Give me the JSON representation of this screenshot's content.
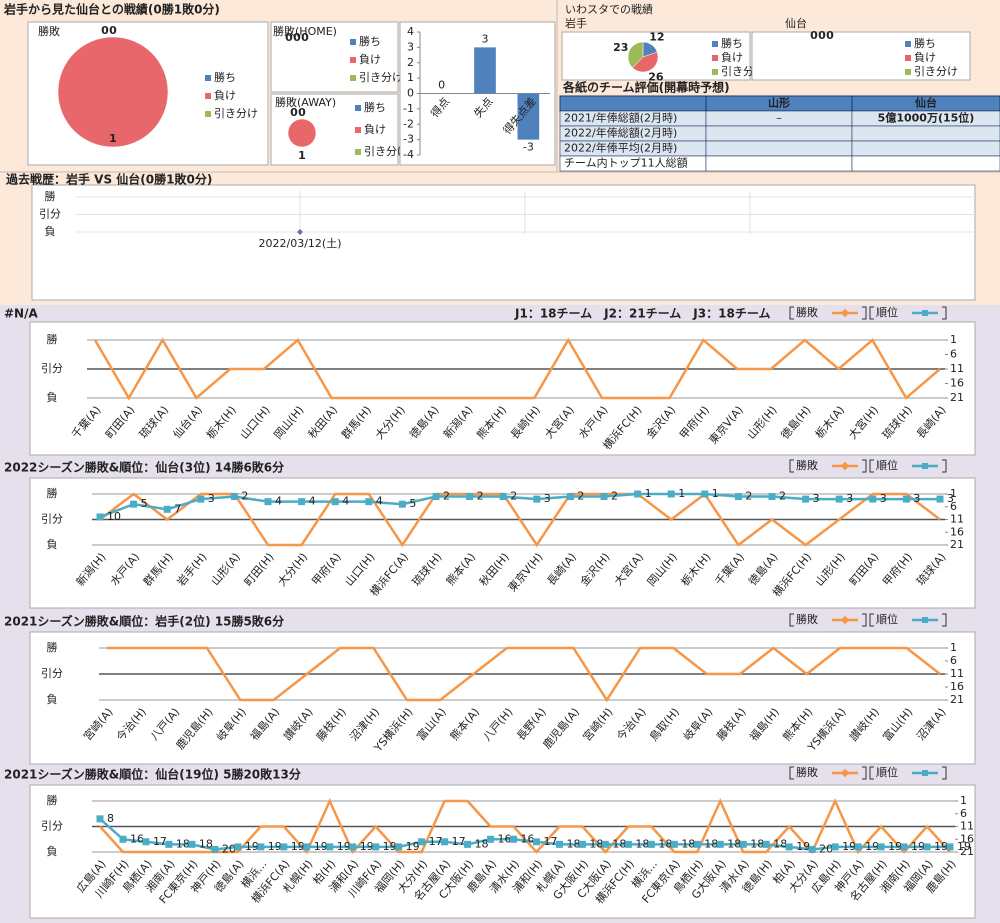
{
  "header": {
    "title": "岩手から見た仙台との戦績(0勝1敗0分)"
  },
  "stadium": {
    "title": "いわスタでの戦績"
  },
  "table": {
    "title": "各紙のチーム評価(開幕時予想)",
    "columns": [
      "山形",
      "仙台"
    ],
    "rows": [
      {
        "label": "2021/年俸総額(2月時)",
        "cells": [
          "–",
          "5億1000万(15位)"
        ]
      },
      {
        "label": "2022/年俸総額(2月時)"
      },
      {
        "label": "2022/年俸平均(2月時)"
      },
      {
        "label": "チーム内トップ11人総額"
      }
    ]
  },
  "chart_data": [
    {
      "type": "pie",
      "title": "勝敗",
      "categories": [
        "勝ち",
        "負け",
        "引き分け"
      ],
      "colors": [
        "#4f81bd",
        "#e8676a",
        "#9bbb59"
      ],
      "values": [
        0,
        1,
        0
      ]
    },
    {
      "type": "pie",
      "title": "勝敗(HOME)",
      "categories": [
        "勝ち",
        "負け",
        "引き分け"
      ],
      "colors": [
        "#4f81bd",
        "#e8676a",
        "#9bbb59"
      ],
      "values": [
        0,
        0,
        0
      ]
    },
    {
      "type": "pie",
      "title": "勝敗(AWAY)",
      "categories": [
        "勝ち",
        "負け",
        "引き分け"
      ],
      "colors": [
        "#4f81bd",
        "#e8676a",
        "#9bbb59"
      ],
      "values": [
        0,
        1,
        0
      ]
    },
    {
      "type": "bar",
      "categories": [
        "得点",
        "失点",
        "得失点差"
      ],
      "values": [
        0,
        3,
        -3
      ],
      "color": "#4f81bd",
      "ylim": [
        -4,
        4
      ],
      "yticks": [
        -4,
        -3,
        -2,
        -1,
        0,
        1,
        2,
        3,
        4
      ],
      "grid": false
    },
    {
      "type": "pie",
      "title": "岩手",
      "categories": [
        "勝ち",
        "負け",
        "引き分け"
      ],
      "colors": [
        "#4f81bd",
        "#e8676a",
        "#9bbb59"
      ],
      "values": [
        12,
        26,
        23
      ]
    },
    {
      "type": "pie",
      "title": "仙台",
      "categories": [
        "勝ち",
        "負け",
        "引き分け"
      ],
      "colors": [
        "#4f81bd",
        "#e8676a",
        "#9bbb59"
      ],
      "values": [
        0,
        0,
        0
      ]
    },
    {
      "type": "scatter",
      "title": "過去戦歴：岩手 VS 仙台(0勝1敗0分)",
      "x": [
        "2022/03/12(土)"
      ],
      "values": [
        21
      ],
      "color": "#8064a2",
      "ylim": [
        21,
        1
      ],
      "yticks": [
        {
          "value": 1,
          "label": "勝"
        },
        {
          "value": 11,
          "label": "引分"
        },
        {
          "value": 21,
          "label": "負"
        }
      ]
    },
    {
      "type": "line",
      "title": "#N/A",
      "subtitle": "J1：18チーム　J2：21チーム　J3：18チーム",
      "categories": [
        "千葉(A)",
        "町田(A)",
        "琉球(A)",
        "仙台(A)",
        "栃木(H)",
        "山口(H)",
        "岡山(H)",
        "秋田(A)",
        "群馬(H)",
        "大分(H)",
        "徳島(A)",
        "新潟(A)",
        "熊本(H)",
        "長崎(H)",
        "大宮(A)",
        "水戸(A)",
        "横浜FC(H)",
        "金沢(A)",
        "甲府(H)",
        "東京V(A)",
        "山形(H)",
        "徳島(H)",
        "栃木(A)",
        "大宮(H)",
        "琉球(H)",
        "長崎(A)"
      ],
      "ylim": [
        21,
        1
      ],
      "yticks": [
        {
          "value": 1,
          "label": "勝"
        },
        {
          "value": 11,
          "label": "引分"
        },
        {
          "value": 21,
          "label": "負"
        }
      ],
      "y2lim": [
        21,
        1
      ],
      "y2ticks": [
        1,
        6,
        11,
        16,
        21
      ],
      "series": [
        {
          "name": "勝敗",
          "color": "#f79646",
          "values": [
            1,
            21,
            1,
            21,
            11,
            11,
            1,
            21,
            21,
            21,
            21,
            21,
            21,
            21,
            1,
            21,
            21,
            21,
            1,
            11,
            11,
            1,
            11,
            1,
            21,
            11
          ]
        },
        {
          "name": "順位",
          "color": "#4bacc6",
          "axis": "y2",
          "values": [
            null,
            null,
            null,
            null,
            null,
            null,
            null,
            null,
            null,
            null,
            null,
            null,
            null,
            null,
            null,
            null,
            null,
            null,
            null,
            null,
            null,
            null,
            null,
            null,
            null,
            null
          ]
        }
      ]
    },
    {
      "type": "line",
      "title": "2022シーズン勝敗&順位：仙台(3位) 14勝6敗6分",
      "categories": [
        "新潟(H)",
        "水戸(A)",
        "群馬(H)",
        "岩手(H)",
        "山形(A)",
        "町田(H)",
        "大分(H)",
        "甲府(A)",
        "山口(H)",
        "横浜FC(A)",
        "琉球(H)",
        "熊本(A)",
        "秋田(H)",
        "東京V(H)",
        "長崎(A)",
        "金沢(H)",
        "大宮(A)",
        "岡山(H)",
        "栃木(H)",
        "千葉(A)",
        "徳島(A)",
        "横浜FC(H)",
        "山形(H)",
        "町田(A)",
        "甲府(H)",
        "琉球(A)"
      ],
      "ylim": [
        21,
        1
      ],
      "yticks": [
        {
          "value": 1,
          "label": "勝"
        },
        {
          "value": 11,
          "label": "引分"
        },
        {
          "value": 21,
          "label": "負"
        }
      ],
      "y2lim": [
        21,
        1
      ],
      "y2ticks": [
        1,
        6,
        11,
        16,
        21
      ],
      "series": [
        {
          "name": "勝敗",
          "color": "#f79646",
          "values": [
            11,
            1,
            11,
            1,
            1,
            21,
            21,
            1,
            1,
            21,
            1,
            1,
            1,
            21,
            1,
            1,
            1,
            11,
            1,
            21,
            11,
            21,
            11,
            1,
            1,
            11
          ]
        },
        {
          "name": "順位",
          "color": "#4bacc6",
          "axis": "y2",
          "data_labels": true,
          "values": [
            10,
            5,
            7,
            3,
            2,
            4,
            4,
            4,
            4,
            5,
            2,
            2,
            2,
            3,
            2,
            2,
            1,
            1,
            1,
            2,
            2,
            3,
            3,
            3,
            3,
            3
          ]
        }
      ]
    },
    {
      "type": "line",
      "title": "2021シーズン勝敗&順位：岩手(2位) 15勝5敗6分",
      "categories": [
        "宮崎(A)",
        "今治(H)",
        "八戸(A)",
        "鹿児島(H)",
        "岐阜(H)",
        "福島(A)",
        "讃岐(A)",
        "藤枝(H)",
        "沼津(H)",
        "YS横浜(H)",
        "富山(A)",
        "熊本(A)",
        "八戸(H)",
        "長野(A)",
        "鹿児島(A)",
        "宮崎(H)",
        "今治(A)",
        "鳥取(H)",
        "岐阜(A)",
        "藤枝(A)",
        "福島(H)",
        "熊本(H)",
        "YS横浜(A)",
        "讃岐(H)",
        "富山(H)",
        "沼津(A)"
      ],
      "ylim": [
        21,
        1
      ],
      "yticks": [
        {
          "value": 1,
          "label": "勝"
        },
        {
          "value": 11,
          "label": "引分"
        },
        {
          "value": 21,
          "label": "負"
        }
      ],
      "y2lim": [
        21,
        1
      ],
      "y2ticks": [
        1,
        6,
        11,
        16,
        21
      ],
      "series": [
        {
          "name": "勝敗",
          "color": "#f79646",
          "values": [
            1,
            1,
            1,
            1,
            21,
            21,
            11,
            1,
            1,
            21,
            21,
            11,
            1,
            1,
            1,
            21,
            1,
            1,
            11,
            11,
            1,
            11,
            1,
            1,
            1,
            11
          ]
        },
        {
          "name": "順位",
          "color": "#4bacc6",
          "axis": "y2",
          "values": [
            null,
            null,
            null,
            null,
            null,
            null,
            null,
            null,
            null,
            null,
            null,
            null,
            null,
            null,
            null,
            null,
            null,
            null,
            null,
            null,
            null,
            null,
            null,
            null,
            null,
            null
          ]
        }
      ]
    },
    {
      "type": "line",
      "title": "2021シーズン勝敗&順位：仙台(19位) 5勝20敗13分",
      "categories": [
        "広島(A)",
        "川崎F(H)",
        "鳥栖(A)",
        "湘南(A)",
        "FC東京(H)",
        "神戸(H)",
        "徳島(A)",
        "横浜...",
        "横浜FC(A)",
        "札幌(H)",
        "柏(H)",
        "浦和(A)",
        "川崎F(A)",
        "福岡(H)",
        "大分(H)",
        "名古屋(A)",
        "C大阪(H)",
        "鹿島(A)",
        "清水(H)",
        "浦和(H)",
        "札幌(A)",
        "G大阪(H)",
        "C大阪(A)",
        "横浜FC(H)",
        "横浜...",
        "FC東京(A)",
        "鳥栖(H)",
        "G大阪(A)",
        "清水(A)",
        "徳島(H)",
        "柏(A)",
        "大分(A)",
        "広島(H)",
        "神戸(A)",
        "名古屋(H)",
        "湘南(H)",
        "福岡(A)",
        "鹿島(H)"
      ],
      "ylim": [
        21,
        1
      ],
      "yticks": [
        {
          "value": 1,
          "label": "勝"
        },
        {
          "value": 11,
          "label": "引分"
        },
        {
          "value": 21,
          "label": "負"
        }
      ],
      "y2lim": [
        21,
        1
      ],
      "y2ticks": [
        1,
        6,
        11,
        16,
        21
      ],
      "series": [
        {
          "name": "勝敗",
          "color": "#f79646",
          "values": [
            11,
            21,
            21,
            21,
            21,
            21,
            21,
            11,
            11,
            21,
            1,
            21,
            11,
            21,
            21,
            1,
            1,
            11,
            11,
            21,
            11,
            11,
            21,
            11,
            11,
            21,
            21,
            1,
            21,
            21,
            11,
            21,
            1,
            21,
            11,
            21,
            11,
            21
          ]
        },
        {
          "name": "順位",
          "color": "#4bacc6",
          "axis": "y2",
          "data_labels": true,
          "values": [
            8,
            16,
            17,
            18,
            18,
            20,
            19,
            19,
            19,
            19,
            19,
            19,
            19,
            19,
            17,
            17,
            18,
            16,
            16,
            17,
            18,
            18,
            18,
            18,
            18,
            18,
            18,
            18,
            18,
            18,
            19,
            20,
            19,
            19,
            19,
            19,
            19,
            19
          ]
        }
      ]
    }
  ]
}
